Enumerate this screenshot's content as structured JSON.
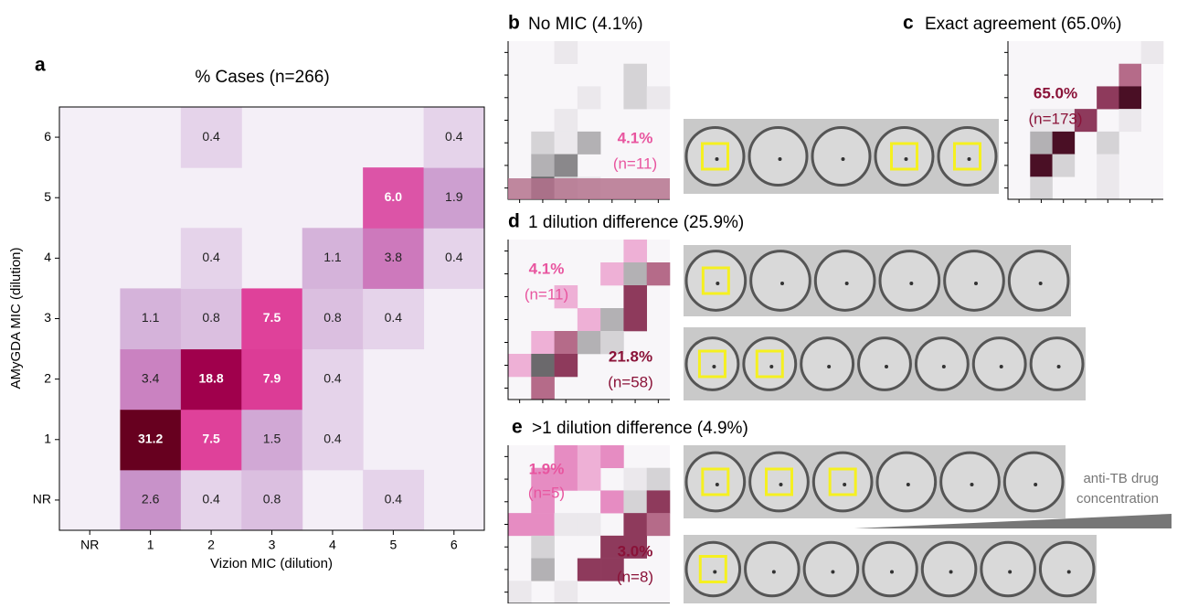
{
  "chart_data": {
    "type": "heatmap",
    "title": "% Cases (n=266)",
    "x_label": "Vizion MIC (dilution)",
    "y_label": "AMyGDA MIC (dilution)",
    "x_categories": [
      "NR",
      "1",
      "2",
      "3",
      "4",
      "5",
      "6"
    ],
    "y_categories": [
      "NR",
      "1",
      "2",
      "3",
      "4",
      "5",
      "6"
    ],
    "values": [
      [
        null,
        2.6,
        0.4,
        0.8,
        null,
        0.4,
        null
      ],
      [
        null,
        31.2,
        7.5,
        1.5,
        0.4,
        null,
        null
      ],
      [
        null,
        3.4,
        18.8,
        7.9,
        0.4,
        null,
        null
      ],
      [
        null,
        1.1,
        0.8,
        7.5,
        0.8,
        0.4,
        null
      ],
      [
        null,
        null,
        0.4,
        null,
        1.1,
        3.8,
        0.4
      ],
      [
        null,
        null,
        null,
        null,
        null,
        6.0,
        1.9
      ],
      [
        null,
        null,
        0.4,
        null,
        null,
        null,
        0.4
      ]
    ],
    "value_labels": [
      [
        null,
        "2.6",
        "0.4",
        "0.8",
        null,
        "0.4",
        null
      ],
      [
        null,
        "31.2",
        "7.5",
        "1.5",
        "0.4",
        null,
        null
      ],
      [
        null,
        "3.4",
        "18.8",
        "7.9",
        "0.4",
        null,
        null
      ],
      [
        null,
        "1.1",
        "0.8",
        "7.5",
        "0.8",
        "0.4",
        null
      ],
      [
        null,
        null,
        "0.4",
        null,
        "1.1",
        "3.8",
        "0.4"
      ],
      [
        null,
        null,
        null,
        null,
        null,
        "6.0",
        "1.9"
      ],
      [
        null,
        null,
        "0.4",
        null,
        null,
        null,
        "0.4"
      ]
    ],
    "color_scale": "log",
    "color_stops": [
      "#f4eff7",
      "#d6b6dc",
      "#c68bc6",
      "#e2479f",
      "#b8005f",
      "#67001f"
    ]
  },
  "panels": {
    "a": {
      "letter": "a"
    },
    "b": {
      "letter": "b",
      "title": "No MIC (4.1%)",
      "notes": [
        "4.1%",
        "(n=11)"
      ]
    },
    "c": {
      "letter": "c",
      "title": "Exact agreement (65.0%)",
      "notes": [
        "65.0%",
        "(n=173)"
      ]
    },
    "d": {
      "letter": "d",
      "title": "1 dilution difference (25.9%)",
      "notes": [
        "4.1%",
        "(n=11)",
        "21.8%",
        "(n=58)"
      ]
    },
    "e": {
      "letter": "e",
      "title": ">1 dilution difference (4.9%)",
      "notes": [
        "1.9%",
        "(n=5)",
        "3.0%",
        "(n=8)"
      ],
      "arrow_label": [
        "anti-TB drug",
        "concentration"
      ]
    }
  }
}
